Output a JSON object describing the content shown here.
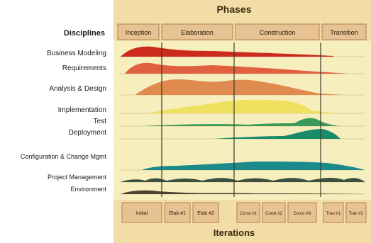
{
  "title": "Phases",
  "footer_title": "Iterations",
  "disciplines_header": "Disciplines",
  "phases": [
    "Inception",
    "Elaboration",
    "Construction",
    "Transition"
  ],
  "disciplines": [
    {
      "label": "Business Modeling",
      "color": "#cc2a1a"
    },
    {
      "label": "Requirements",
      "color": "#e06040"
    },
    {
      "label": "Analysis & Design",
      "color": "#e08a50"
    },
    {
      "label": "Implementation",
      "color": "#f0e060"
    },
    {
      "label": "Test",
      "color": "#3a9a5a"
    },
    {
      "label": "Deployment",
      "color": "#1a8a6a"
    },
    {
      "label": "Configuration & Change Mgmt",
      "color": "#1a8a8a"
    },
    {
      "label": "Project Management",
      "color": "#3a5040"
    },
    {
      "label": "Environment",
      "color": "#504030"
    }
  ],
  "iterations": [
    "Initial",
    "Elab #1",
    "Elab #2",
    "Const #1",
    "Const #2",
    "Const #N",
    "Tran #1",
    "Tran #2"
  ],
  "colors": {
    "panel": "#f7eebd",
    "header_band": "#e8c98a",
    "box_fill": "#e7c393",
    "box_stroke": "#b08050",
    "title_text": "#3a2a10",
    "grid": "#d8cf9a"
  }
}
